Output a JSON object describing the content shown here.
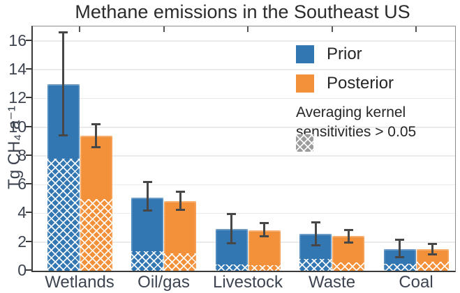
{
  "chart_data": {
    "type": "bar",
    "title": "Methane emissions in the Southeast US",
    "xlabel": "",
    "ylabel": "Tg CH₄ a⁻¹",
    "ylim": [
      0,
      17
    ],
    "yticks": [
      0,
      2,
      4,
      6,
      8,
      10,
      12,
      14,
      16
    ],
    "grid": true,
    "legend_position": "upper right",
    "categories": [
      "Wetlands",
      "Oil/gas",
      "Livestock",
      "Waste",
      "Coal"
    ],
    "series": [
      {
        "name": "Prior",
        "color": "#3377b2",
        "values": [
          13.0,
          5.1,
          2.9,
          2.55,
          1.5
        ],
        "err_low": [
          9.4,
          4.2,
          1.9,
          1.75,
          0.95
        ],
        "err_high": [
          16.6,
          6.2,
          3.95,
          3.35,
          2.15
        ],
        "hatch_values": [
          7.8,
          1.35,
          0.45,
          0.8,
          0.5
        ]
      },
      {
        "name": "Posterior",
        "color": "#f2913a",
        "values": [
          9.4,
          4.85,
          2.8,
          2.4,
          1.5
        ],
        "err_low": [
          8.6,
          4.25,
          2.4,
          1.95,
          1.15
        ],
        "err_high": [
          10.2,
          5.5,
          3.3,
          2.85,
          1.85
        ],
        "hatch_values": [
          5.0,
          1.2,
          0.4,
          0.6,
          0.65
        ]
      }
    ],
    "hatch_legend": {
      "line1": "Averaging kernel",
      "line2": "sensitivities > 0.05",
      "swatch_color": "#9c9c9c"
    },
    "colors": {
      "error_bar": "#474747",
      "gridline": "#ebebeb",
      "spine_dark": "#3a3a3a",
      "spine_light": "#8c8c8c",
      "tick_label": "#3d4450",
      "title": "#2b2b2b"
    }
  }
}
